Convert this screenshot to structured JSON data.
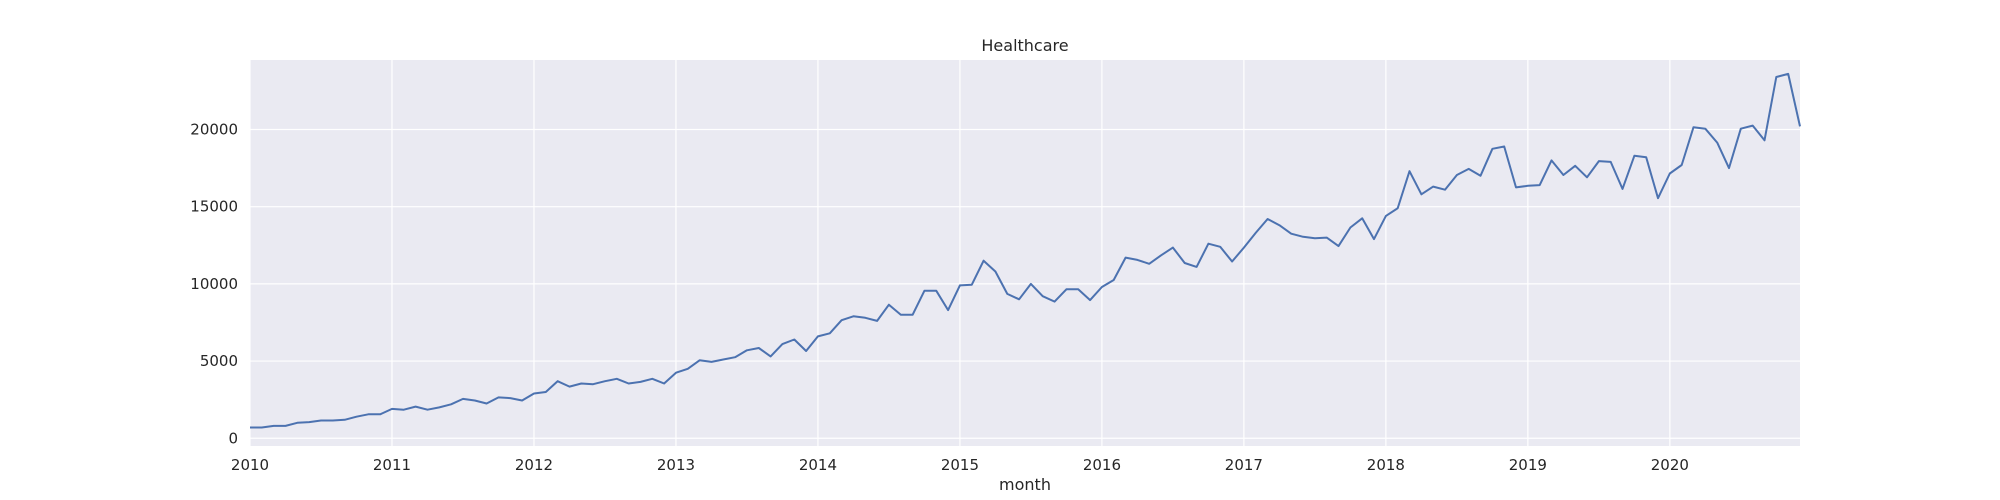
{
  "chart_data": {
    "type": "line",
    "title": "Healthcare",
    "xlabel": "month",
    "ylabel": "",
    "x_start": "2010-01",
    "x_end": "2020-12",
    "xlim": [
      "2010-01",
      "2020-12"
    ],
    "ylim": [
      -500,
      24500
    ],
    "yticks": [
      0,
      5000,
      10000,
      15000,
      20000
    ],
    "xticks": [
      "2010",
      "2011",
      "2012",
      "2013",
      "2014",
      "2015",
      "2016",
      "2017",
      "2018",
      "2019",
      "2020"
    ],
    "grid": true,
    "series": [
      {
        "color": "#4c72b0",
        "values": [
          700,
          700,
          800,
          800,
          1000,
          1050,
          1150,
          1150,
          1200,
          1400,
          1550,
          1550,
          1900,
          1850,
          2050,
          1850,
          2000,
          2200,
          2550,
          2450,
          2250,
          2650,
          2600,
          2450,
          2900,
          3000,
          3700,
          3350,
          3550,
          3500,
          3700,
          3850,
          3550,
          3650,
          3850,
          3550,
          4250,
          4500,
          5050,
          4950,
          5100,
          5250,
          5700,
          5850,
          5300,
          6100,
          6400,
          5650,
          6600,
          6800,
          7650,
          7900,
          7800,
          7600,
          8650,
          8000,
          8000,
          9550,
          9550,
          8300,
          9900,
          9950,
          11500,
          10800,
          9350,
          9000,
          10000,
          9200,
          8850,
          9650,
          9650,
          8950,
          9800,
          10250,
          11700,
          11550,
          11300,
          11850,
          12350,
          11350,
          11100,
          12600,
          12400,
          11450,
          12350,
          13300,
          14200,
          13800,
          13250,
          13050,
          12950,
          13000,
          12450,
          13650,
          14250,
          12900,
          14400,
          14900,
          17300,
          15800,
          16300,
          16100,
          17050,
          17450,
          17000,
          18750,
          18900,
          16250,
          16350,
          16400,
          18000,
          17050,
          17650,
          16900,
          17950,
          17900,
          16150,
          18300,
          18200,
          15550,
          17150,
          17700,
          20150,
          20050,
          19150,
          17500,
          20050,
          20250,
          19300,
          23400,
          23600,
          20200
        ]
      }
    ]
  }
}
